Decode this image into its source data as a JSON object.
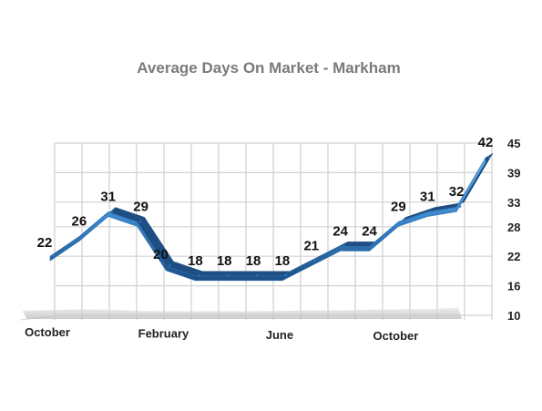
{
  "chart_data": {
    "type": "line",
    "title": "Average Days On Market - Markham",
    "xlabel": "",
    "ylabel": "",
    "ylim": [
      10,
      45
    ],
    "yticks": [
      10,
      16,
      22,
      28,
      33,
      39,
      45
    ],
    "x_labels": [
      {
        "index": 0,
        "label": "October"
      },
      {
        "index": 4,
        "label": "February"
      },
      {
        "index": 8,
        "label": "June"
      },
      {
        "index": 12,
        "label": "October"
      }
    ],
    "series": [
      {
        "values": [
          22,
          26,
          31,
          29,
          20,
          18,
          18,
          18,
          18,
          21,
          24,
          24,
          29,
          31,
          32,
          42
        ]
      }
    ],
    "grid": true,
    "legend": "none",
    "line_color": "#3a86cc",
    "shadow_color": "#d0d0d0"
  }
}
